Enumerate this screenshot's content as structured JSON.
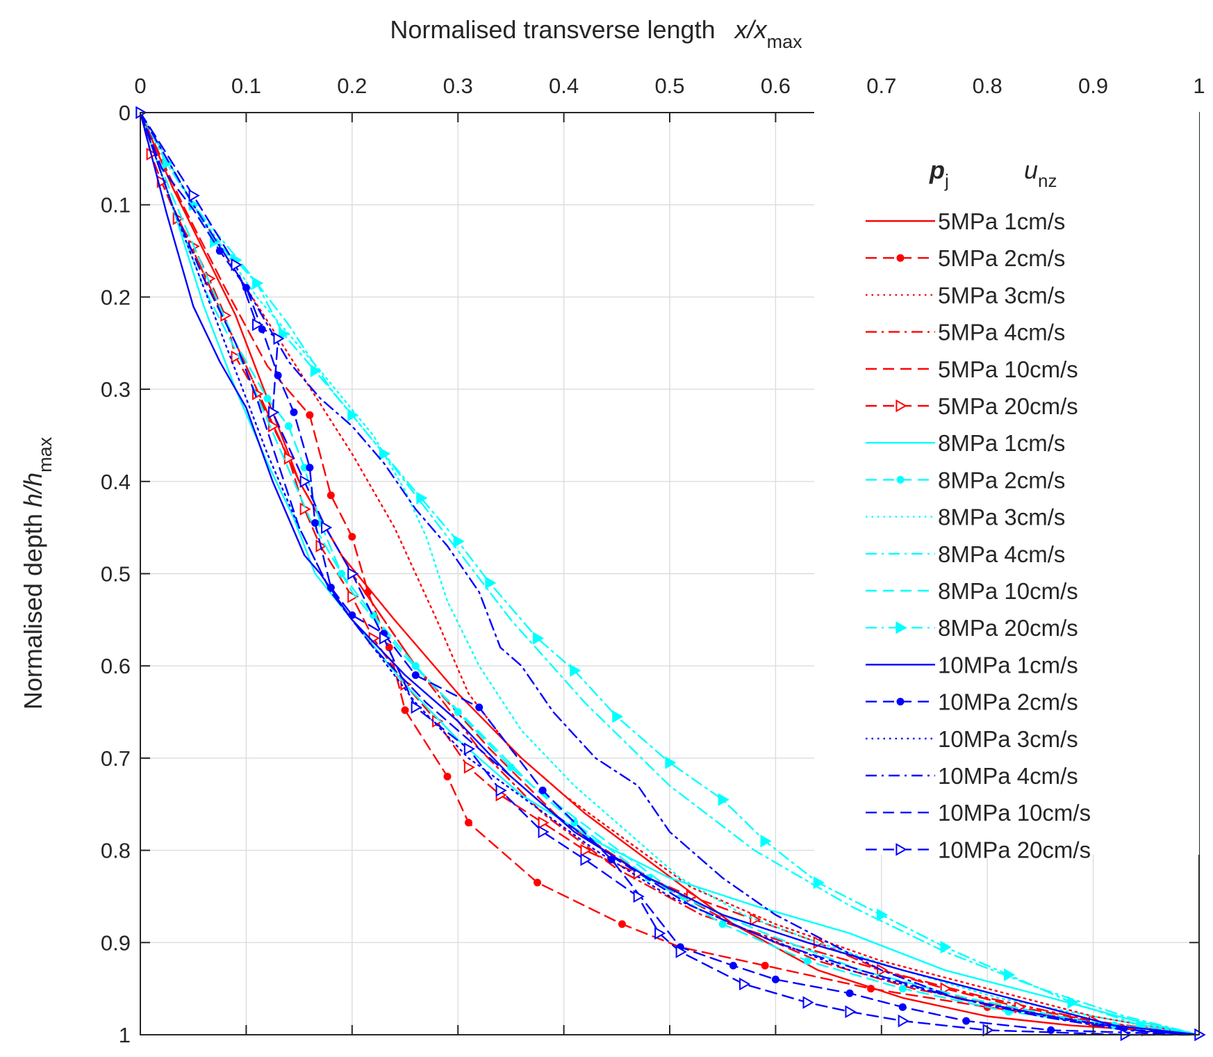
{
  "chart_data": {
    "type": "line",
    "title": "",
    "xlabel": {
      "main": "Normalised transverse length",
      "var": "x/x",
      "sub": "max"
    },
    "ylabel": {
      "main": "Normalised depth",
      "var": "h/h",
      "sub": "max"
    },
    "xlim": [
      0,
      1
    ],
    "ylim": [
      0,
      1
    ],
    "y_reversed": true,
    "x_axis_location": "top",
    "grid": true,
    "x_ticks": [
      0,
      0.1,
      0.2,
      0.3,
      0.4,
      0.5,
      0.6,
      0.7,
      0.8,
      0.9,
      1
    ],
    "x_tick_labels": [
      "0",
      "0.1",
      "0.2",
      "0.3",
      "0.4",
      "0.5",
      "0.6",
      "0.7",
      "0.8",
      "0.9",
      "1"
    ],
    "y_ticks": [
      0,
      0.1,
      0.2,
      0.3,
      0.4,
      0.5,
      0.6,
      0.7,
      0.8,
      0.9,
      1
    ],
    "y_tick_labels": [
      "0",
      "0.1",
      "0.2",
      "0.3",
      "0.4",
      "0.5",
      "0.6",
      "0.7",
      "0.8",
      "0.9",
      "1"
    ],
    "legend": {
      "placement": "top-right",
      "header_pj": {
        "var": "p",
        "sub": "j"
      },
      "header_unz": {
        "var": "u",
        "sub": "nz"
      }
    },
    "series": [
      {
        "name": "5MPa 1cm/s",
        "color": "#ff0000",
        "dash": "solid",
        "marker": "none",
        "x": [
          0,
          0.03,
          0.06,
          0.09,
          0.12,
          0.15,
          0.19,
          0.24,
          0.3,
          0.36,
          0.42,
          0.49,
          0.56,
          0.64,
          0.72,
          0.8,
          0.88,
          0.95,
          1
        ],
        "y": [
          0,
          0.08,
          0.15,
          0.22,
          0.31,
          0.4,
          0.48,
          0.55,
          0.63,
          0.7,
          0.76,
          0.82,
          0.88,
          0.93,
          0.96,
          0.98,
          0.99,
          0.995,
          1
        ]
      },
      {
        "name": "5MPa 2cm/s",
        "color": "#ff0000",
        "dash": "dashed",
        "marker": "dot",
        "x": [
          0,
          0.04,
          0.08,
          0.12,
          0.16,
          0.18,
          0.2,
          0.215,
          0.235,
          0.25,
          0.29,
          0.31,
          0.375,
          0.455,
          0.51,
          0.59,
          0.69,
          0.8,
          0.93,
          1
        ],
        "y": [
          0,
          0.1,
          0.19,
          0.275,
          0.328,
          0.415,
          0.46,
          0.52,
          0.58,
          0.648,
          0.72,
          0.77,
          0.835,
          0.88,
          0.905,
          0.925,
          0.95,
          0.97,
          0.99,
          1
        ],
        "markers_at": [
          4,
          5,
          6,
          7,
          8,
          9,
          10,
          11,
          12,
          13,
          14,
          15,
          16,
          17
        ]
      },
      {
        "name": "5MPa 3cm/s",
        "color": "#ff0000",
        "dash": "dotted",
        "marker": "none",
        "x": [
          0,
          0.05,
          0.1,
          0.15,
          0.2,
          0.24,
          0.28,
          0.31,
          0.35,
          0.4,
          0.46,
          0.52,
          0.6,
          0.7,
          0.8,
          0.9,
          1
        ],
        "y": [
          0,
          0.1,
          0.19,
          0.28,
          0.37,
          0.45,
          0.55,
          0.63,
          0.69,
          0.74,
          0.79,
          0.84,
          0.88,
          0.92,
          0.95,
          0.98,
          1
        ]
      },
      {
        "name": "5MPa 4cm/s",
        "color": "#ff0000",
        "dash": "dashdot",
        "marker": "none",
        "x": [
          0,
          0.03,
          0.07,
          0.11,
          0.15,
          0.2,
          0.26,
          0.32,
          0.38,
          0.45,
          0.53,
          0.61,
          0.7,
          0.8,
          0.9,
          1
        ],
        "y": [
          0,
          0.1,
          0.2,
          0.3,
          0.4,
          0.5,
          0.6,
          0.69,
          0.76,
          0.82,
          0.87,
          0.9,
          0.93,
          0.96,
          0.985,
          1
        ]
      },
      {
        "name": "5MPa 10cm/s",
        "color": "#ff0000",
        "dash": "dashed",
        "marker": "none",
        "x": [
          0,
          0.03,
          0.07,
          0.11,
          0.15,
          0.2,
          0.26,
          0.33,
          0.4,
          0.48,
          0.56,
          0.64,
          0.73,
          0.82,
          0.91,
          1
        ],
        "y": [
          0,
          0.1,
          0.2,
          0.3,
          0.4,
          0.5,
          0.6,
          0.69,
          0.77,
          0.83,
          0.88,
          0.92,
          0.95,
          0.97,
          0.99,
          1
        ]
      },
      {
        "name": "5MPa 20cm/s",
        "color": "#ff0000",
        "dash": "dashed",
        "marker": "triangle-right-open",
        "x": [
          0,
          0.01,
          0.02,
          0.035,
          0.05,
          0.065,
          0.08,
          0.09,
          0.11,
          0.125,
          0.14,
          0.155,
          0.17,
          0.2,
          0.22,
          0.25,
          0.28,
          0.31,
          0.34,
          0.38,
          0.42,
          0.47,
          0.52,
          0.58,
          0.64,
          0.7,
          0.76,
          0.83,
          0.9,
          0.95,
          1
        ],
        "y": [
          0,
          0.045,
          0.075,
          0.115,
          0.145,
          0.18,
          0.22,
          0.265,
          0.305,
          0.34,
          0.375,
          0.43,
          0.47,
          0.525,
          0.57,
          0.62,
          0.66,
          0.71,
          0.74,
          0.77,
          0.8,
          0.825,
          0.85,
          0.875,
          0.9,
          0.93,
          0.95,
          0.97,
          0.985,
          0.995,
          1
        ]
      },
      {
        "name": "8MPa 1cm/s",
        "color": "#00ffff",
        "dash": "solid",
        "marker": "none",
        "x": [
          0,
          0.03,
          0.06,
          0.09,
          0.12,
          0.145,
          0.165,
          0.2,
          0.25,
          0.3,
          0.36,
          0.43,
          0.5,
          0.58,
          0.67,
          0.76,
          0.86,
          0.94,
          1
        ],
        "y": [
          0,
          0.1,
          0.21,
          0.3,
          0.38,
          0.44,
          0.5,
          0.55,
          0.62,
          0.68,
          0.74,
          0.79,
          0.83,
          0.86,
          0.89,
          0.93,
          0.96,
          0.985,
          1
        ]
      },
      {
        "name": "8MPa 2cm/s",
        "color": "#00ffff",
        "dash": "dashed",
        "marker": "dot",
        "x": [
          0,
          0.03,
          0.06,
          0.09,
          0.12,
          0.14,
          0.155,
          0.17,
          0.19,
          0.22,
          0.26,
          0.3,
          0.35,
          0.41,
          0.48,
          0.55,
          0.63,
          0.72,
          0.82,
          0.92,
          1
        ],
        "y": [
          0,
          0.09,
          0.17,
          0.25,
          0.31,
          0.34,
          0.385,
          0.445,
          0.5,
          0.545,
          0.6,
          0.65,
          0.71,
          0.77,
          0.83,
          0.88,
          0.92,
          0.95,
          0.975,
          0.99,
          1
        ],
        "markers_at": [
          4,
          5,
          6,
          7,
          8,
          9,
          10,
          11,
          12,
          13,
          14,
          15,
          16,
          17,
          18,
          19
        ]
      },
      {
        "name": "8MPa 3cm/s",
        "color": "#00ffff",
        "dash": "dotted",
        "marker": "none",
        "x": [
          0,
          0.05,
          0.11,
          0.17,
          0.22,
          0.25,
          0.27,
          0.29,
          0.32,
          0.36,
          0.41,
          0.46,
          0.51,
          0.57,
          0.64,
          0.72,
          0.81,
          0.9,
          1
        ],
        "y": [
          0,
          0.1,
          0.2,
          0.28,
          0.35,
          0.41,
          0.46,
          0.53,
          0.6,
          0.67,
          0.73,
          0.78,
          0.83,
          0.87,
          0.9,
          0.93,
          0.96,
          0.98,
          1
        ]
      },
      {
        "name": "8MPa 4cm/s",
        "color": "#00ffff",
        "dash": "dashdot",
        "marker": "none",
        "x": [
          0,
          0.05,
          0.1,
          0.14,
          0.18,
          0.23,
          0.29,
          0.35,
          0.42,
          0.5,
          0.58,
          0.67,
          0.76,
          0.85,
          0.93,
          1
        ],
        "y": [
          0,
          0.1,
          0.17,
          0.23,
          0.3,
          0.37,
          0.46,
          0.55,
          0.64,
          0.73,
          0.8,
          0.86,
          0.91,
          0.95,
          0.98,
          1
        ]
      },
      {
        "name": "8MPa 10cm/s",
        "color": "#00ffff",
        "dash": "dashed",
        "marker": "none",
        "x": [
          0,
          0.03,
          0.06,
          0.1,
          0.13,
          0.16,
          0.2,
          0.25,
          0.31,
          0.37,
          0.44,
          0.51,
          0.59,
          0.68,
          0.78,
          0.89,
          1
        ],
        "y": [
          0,
          0.1,
          0.19,
          0.28,
          0.36,
          0.44,
          0.52,
          0.59,
          0.66,
          0.73,
          0.79,
          0.85,
          0.89,
          0.93,
          0.96,
          0.985,
          1
        ]
      },
      {
        "name": "8MPa 20cm/s",
        "color": "#00ffff",
        "dash": "dashdot",
        "marker": "triangle-right-filled",
        "x": [
          0,
          0.025,
          0.05,
          0.07,
          0.09,
          0.11,
          0.135,
          0.165,
          0.2,
          0.23,
          0.265,
          0.3,
          0.33,
          0.375,
          0.41,
          0.45,
          0.5,
          0.55,
          0.59,
          0.64,
          0.7,
          0.76,
          0.82,
          0.88,
          0.945,
          1
        ],
        "y": [
          0,
          0.055,
          0.1,
          0.14,
          0.16,
          0.185,
          0.24,
          0.28,
          0.328,
          0.37,
          0.418,
          0.465,
          0.51,
          0.57,
          0.605,
          0.655,
          0.705,
          0.745,
          0.79,
          0.835,
          0.87,
          0.905,
          0.935,
          0.965,
          0.99,
          1
        ]
      },
      {
        "name": "10MPa 1cm/s",
        "color": "#0000ff",
        "dash": "solid",
        "marker": "none",
        "x": [
          0,
          0.025,
          0.05,
          0.075,
          0.1,
          0.125,
          0.14,
          0.155,
          0.17,
          0.2,
          0.25,
          0.3,
          0.35,
          0.41,
          0.48,
          0.55,
          0.63,
          0.72,
          0.82,
          0.92,
          1
        ],
        "y": [
          0,
          0.11,
          0.21,
          0.27,
          0.32,
          0.4,
          0.44,
          0.48,
          0.5,
          0.55,
          0.61,
          0.66,
          0.72,
          0.78,
          0.83,
          0.87,
          0.9,
          0.93,
          0.96,
          0.99,
          1
        ]
      },
      {
        "name": "10MPa 2cm/s",
        "color": "#0000ff",
        "dash": "dashed",
        "marker": "dot",
        "x": [
          0,
          0.02,
          0.05,
          0.075,
          0.1,
          0.115,
          0.13,
          0.145,
          0.16,
          0.165,
          0.18,
          0.2,
          0.23,
          0.26,
          0.32,
          0.38,
          0.445,
          0.51,
          0.56,
          0.6,
          0.67,
          0.72,
          0.78,
          0.86,
          1
        ],
        "y": [
          0,
          0.06,
          0.105,
          0.15,
          0.19,
          0.235,
          0.285,
          0.325,
          0.385,
          0.445,
          0.515,
          0.545,
          0.565,
          0.61,
          0.645,
          0.735,
          0.81,
          0.905,
          0.925,
          0.94,
          0.955,
          0.97,
          0.985,
          0.995,
          1
        ],
        "markers_at": [
          3,
          4,
          5,
          6,
          7,
          8,
          9,
          10,
          11,
          12,
          13,
          14,
          15,
          16,
          17,
          18,
          19,
          20,
          21,
          22,
          23
        ]
      },
      {
        "name": "10MPa 3cm/s",
        "color": "#0000ff",
        "dash": "dotted",
        "marker": "none",
        "x": [
          0,
          0.03,
          0.06,
          0.09,
          0.12,
          0.15,
          0.18,
          0.22,
          0.26,
          0.31,
          0.37,
          0.43,
          0.5,
          0.58,
          0.67,
          0.77,
          0.88,
          1
        ],
        "y": [
          0,
          0.1,
          0.19,
          0.28,
          0.37,
          0.45,
          0.52,
          0.58,
          0.64,
          0.7,
          0.75,
          0.8,
          0.85,
          0.89,
          0.93,
          0.96,
          0.985,
          1
        ]
      },
      {
        "name": "10MPa 4cm/s",
        "color": "#0000ff",
        "dash": "dashdot",
        "marker": "none",
        "x": [
          0,
          0.05,
          0.1,
          0.14,
          0.17,
          0.2,
          0.23,
          0.26,
          0.29,
          0.32,
          0.34,
          0.36,
          0.39,
          0.43,
          0.47,
          0.5,
          0.55,
          0.6,
          0.65,
          0.7,
          0.77,
          0.85,
          0.93,
          1
        ],
        "y": [
          0,
          0.1,
          0.19,
          0.27,
          0.31,
          0.34,
          0.38,
          0.43,
          0.47,
          0.52,
          0.58,
          0.6,
          0.65,
          0.7,
          0.73,
          0.78,
          0.83,
          0.87,
          0.9,
          0.93,
          0.96,
          0.98,
          0.995,
          1
        ]
      },
      {
        "name": "10MPa 10cm/s",
        "color": "#0000ff",
        "dash": "dashed",
        "marker": "none",
        "x": [
          0,
          0.03,
          0.06,
          0.09,
          0.11,
          0.13,
          0.15,
          0.18,
          0.22,
          0.27,
          0.33,
          0.39,
          0.45,
          0.52,
          0.6,
          0.68,
          0.77,
          0.86,
          0.94,
          1
        ],
        "y": [
          0,
          0.1,
          0.18,
          0.25,
          0.31,
          0.38,
          0.45,
          0.52,
          0.58,
          0.64,
          0.7,
          0.76,
          0.81,
          0.86,
          0.9,
          0.93,
          0.96,
          0.98,
          0.995,
          1
        ]
      },
      {
        "name": "10MPa 20cm/s",
        "color": "#0000ff",
        "dash": "dashed",
        "marker": "triangle-right-open",
        "x": [
          0,
          0.05,
          0.09,
          0.11,
          0.13,
          0.125,
          0.155,
          0.175,
          0.2,
          0.23,
          0.26,
          0.31,
          0.34,
          0.38,
          0.42,
          0.47,
          0.49,
          0.51,
          0.57,
          0.63,
          0.67,
          0.72,
          0.8,
          0.93,
          1
        ],
        "y": [
          0,
          0.09,
          0.165,
          0.23,
          0.245,
          0.325,
          0.4,
          0.45,
          0.5,
          0.57,
          0.645,
          0.69,
          0.735,
          0.78,
          0.81,
          0.85,
          0.89,
          0.91,
          0.945,
          0.965,
          0.975,
          0.985,
          0.995,
          1,
          1
        ]
      }
    ]
  }
}
